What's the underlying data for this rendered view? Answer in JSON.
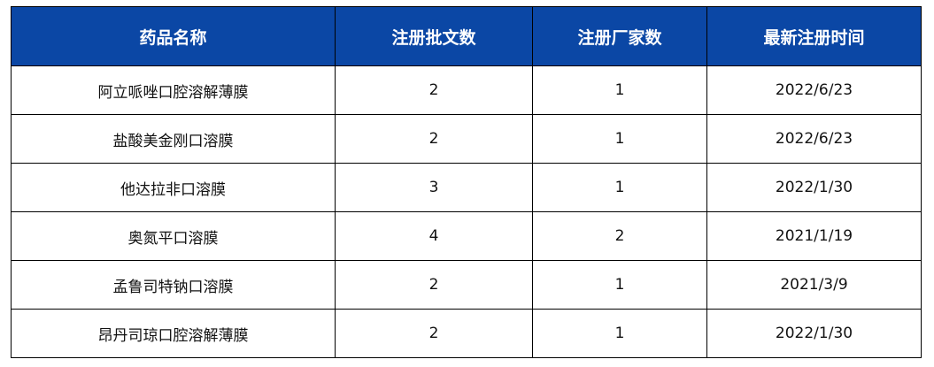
{
  "table": {
    "header_color": "#0b47a5",
    "headers": [
      "药品名称",
      "注册批文数",
      "注册厂家数",
      "最新注册时间"
    ],
    "rows": [
      [
        "阿立哌唑口腔溶解薄膜",
        "2",
        "1",
        "2022/6/23"
      ],
      [
        "盐酸美金刚口溶膜",
        "2",
        "1",
        "2022/6/23"
      ],
      [
        "他达拉非口溶膜",
        "3",
        "1",
        "2022/1/30"
      ],
      [
        "奥氮平口溶膜",
        "4",
        "2",
        "2021/1/19"
      ],
      [
        "孟鲁司特钠口溶膜",
        "2",
        "1",
        "2021/3/9"
      ],
      [
        "昂丹司琼口腔溶解薄膜",
        "2",
        "1",
        "2022/1/30"
      ]
    ]
  }
}
